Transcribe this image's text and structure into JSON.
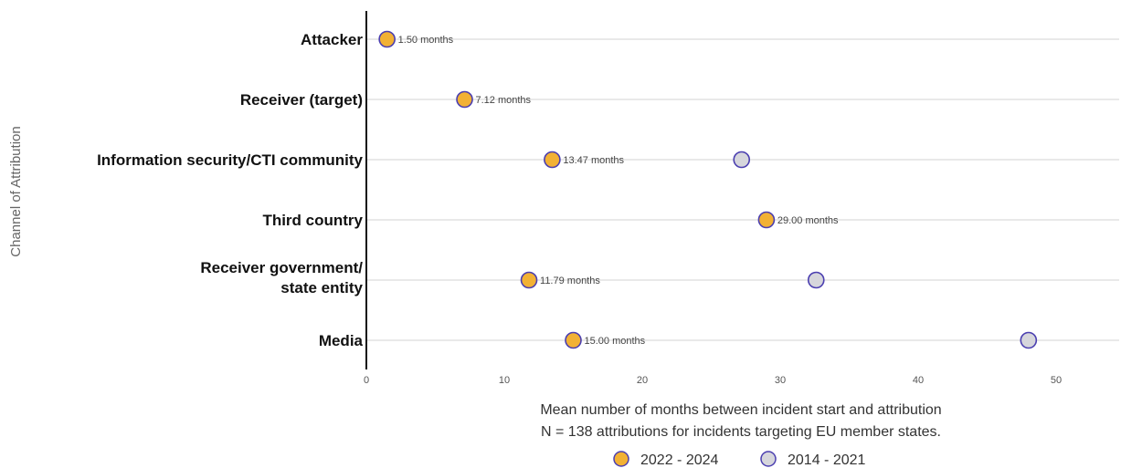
{
  "chart_data": {
    "type": "scatter",
    "ylabel": "Channel of Attribution",
    "xlabel": "Mean number of months between incident start and attribution",
    "note": "N = 138 attributions for incidents targeting EU member states.",
    "xlim": [
      0,
      55
    ],
    "xticks": [
      0,
      10,
      20,
      30,
      40,
      50
    ],
    "grid": "horizontal",
    "legend_position": "bottom",
    "categories": [
      [
        "Attacker"
      ],
      [
        "Receiver (target)"
      ],
      [
        "Information security/CTI community"
      ],
      [
        "Third country"
      ],
      [
        "Receiver government/",
        "state entity"
      ],
      [
        "Media"
      ]
    ],
    "series": [
      {
        "name": "2022 - 2024",
        "color": "#F2B134",
        "stroke": "#4B3FB0",
        "values": [
          1.5,
          7.12,
          13.47,
          29.0,
          11.79,
          15.0
        ],
        "labels": [
          "1.50 months",
          "7.12 months",
          "13.47 months",
          "29.00 months",
          "11.79 months",
          "15.00 months"
        ]
      },
      {
        "name": "2014 - 2021",
        "color": "#D6D6DC",
        "stroke": "#4B3FB0",
        "values": [
          null,
          null,
          27.2,
          null,
          32.6,
          48.0
        ],
        "labels": []
      }
    ]
  }
}
